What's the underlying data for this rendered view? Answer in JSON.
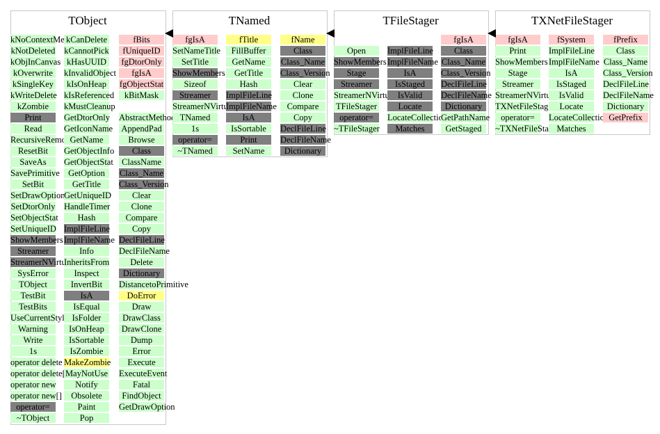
{
  "colors": {
    "constant": "#ffcccc",
    "method": "#ccffcc",
    "inherited": "#7f7f7f",
    "member": "#ffff88"
  },
  "classes": [
    {
      "name": "TObject",
      "columns": [
        [
          {
            "t": "kNoContextMenu",
            "k": "meth"
          },
          {
            "t": "kNotDeleted",
            "k": "meth"
          },
          {
            "t": "kObjInCanvas",
            "k": "meth"
          },
          {
            "t": "kOverwrite",
            "k": "meth"
          },
          {
            "t": "kSingleKey",
            "k": "meth"
          },
          {
            "t": "kWriteDelete",
            "k": "meth"
          },
          {
            "t": "kZombie",
            "k": "meth"
          },
          {
            "t": "Print",
            "k": "inh"
          },
          {
            "t": "Read",
            "k": "meth"
          },
          {
            "t": "RecursiveRemove",
            "k": "meth"
          },
          {
            "t": "ResetBit",
            "k": "meth"
          },
          {
            "t": "SaveAs",
            "k": "meth"
          },
          {
            "t": "SavePrimitive",
            "k": "meth"
          },
          {
            "t": "SetBit",
            "k": "meth"
          },
          {
            "t": "SetDrawOption",
            "k": "meth"
          },
          {
            "t": "SetDtorOnly",
            "k": "meth"
          },
          {
            "t": "SetObjectStat",
            "k": "meth"
          },
          {
            "t": "SetUniqueID",
            "k": "meth"
          },
          {
            "t": "ShowMembers",
            "k": "inh"
          },
          {
            "t": "Streamer",
            "k": "inh"
          },
          {
            "t": "StreamerNVirtual",
            "k": "inh"
          },
          {
            "t": "SysError",
            "k": "meth"
          },
          {
            "t": "TObject",
            "k": "meth"
          },
          {
            "t": "TestBit",
            "k": "meth"
          },
          {
            "t": "TestBits",
            "k": "meth"
          },
          {
            "t": "UseCurrentStyle",
            "k": "meth"
          },
          {
            "t": "Warning",
            "k": "meth"
          },
          {
            "t": "Write",
            "k": "meth"
          },
          {
            "t": "1s",
            "k": "meth"
          },
          {
            "t": "operator delete",
            "k": "meth"
          },
          {
            "t": "operator delete[]",
            "k": "meth"
          },
          {
            "t": "operator new",
            "k": "meth"
          },
          {
            "t": "operator new[]",
            "k": "meth"
          },
          {
            "t": "operator=",
            "k": "inh"
          },
          {
            "t": "~TObject",
            "k": "meth"
          }
        ],
        [
          {
            "t": "kCanDelete",
            "k": "meth"
          },
          {
            "t": "kCannotPick",
            "k": "meth"
          },
          {
            "t": "kHasUUID",
            "k": "meth"
          },
          {
            "t": "kInvalidObject",
            "k": "meth"
          },
          {
            "t": "kIsOnHeap",
            "k": "meth"
          },
          {
            "t": "kIsReferenced",
            "k": "meth"
          },
          {
            "t": "kMustCleanup",
            "k": "meth"
          },
          {
            "t": "GetDtorOnly",
            "k": "meth"
          },
          {
            "t": "GetIconName",
            "k": "meth"
          },
          {
            "t": "GetName",
            "k": "meth"
          },
          {
            "t": "GetObjectInfo",
            "k": "meth"
          },
          {
            "t": "GetObjectStat",
            "k": "meth"
          },
          {
            "t": "GetOption",
            "k": "meth"
          },
          {
            "t": "GetTitle",
            "k": "meth"
          },
          {
            "t": "GetUniqueID",
            "k": "meth"
          },
          {
            "t": "HandleTimer",
            "k": "meth"
          },
          {
            "t": "Hash",
            "k": "meth"
          },
          {
            "t": "ImplFileLine",
            "k": "inh"
          },
          {
            "t": "ImplFileName",
            "k": "inh"
          },
          {
            "t": "Info",
            "k": "meth"
          },
          {
            "t": "InheritsFrom",
            "k": "meth"
          },
          {
            "t": "Inspect",
            "k": "meth"
          },
          {
            "t": "InvertBit",
            "k": "meth"
          },
          {
            "t": "IsA",
            "k": "inh"
          },
          {
            "t": "IsEqual",
            "k": "meth"
          },
          {
            "t": "IsFolder",
            "k": "meth"
          },
          {
            "t": "IsOnHeap",
            "k": "meth"
          },
          {
            "t": "IsSortable",
            "k": "meth"
          },
          {
            "t": "IsZombie",
            "k": "meth"
          },
          {
            "t": "MakeZombie",
            "k": "data"
          },
          {
            "t": "MayNotUse",
            "k": "meth"
          },
          {
            "t": "Notify",
            "k": "meth"
          },
          {
            "t": "Obsolete",
            "k": "meth"
          },
          {
            "t": "Paint",
            "k": "meth"
          },
          {
            "t": "Pop",
            "k": "meth"
          }
        ],
        [
          {
            "t": "fBits",
            "k": "const"
          },
          {
            "t": "fUniqueID",
            "k": "const"
          },
          {
            "t": "fgDtorOnly",
            "k": "const"
          },
          {
            "t": "fgIsA",
            "k": "const"
          },
          {
            "t": "fgObjectStat",
            "k": "const"
          },
          {
            "t": "kBitMask",
            "k": "meth"
          },
          {
            "t": "",
            "k": "none"
          },
          {
            "t": "AbstractMethod",
            "k": "meth"
          },
          {
            "t": "AppendPad",
            "k": "meth"
          },
          {
            "t": "Browse",
            "k": "meth"
          },
          {
            "t": "Class",
            "k": "inh"
          },
          {
            "t": "ClassName",
            "k": "meth"
          },
          {
            "t": "Class_Name",
            "k": "inh"
          },
          {
            "t": "Class_Version",
            "k": "inh"
          },
          {
            "t": "Clear",
            "k": "meth"
          },
          {
            "t": "Clone",
            "k": "meth"
          },
          {
            "t": "Compare",
            "k": "meth"
          },
          {
            "t": "Copy",
            "k": "meth"
          },
          {
            "t": "DeclFileLine",
            "k": "inh"
          },
          {
            "t": "DeclFileName",
            "k": "meth"
          },
          {
            "t": "Delete",
            "k": "meth"
          },
          {
            "t": "Dictionary",
            "k": "inh"
          },
          {
            "t": "DistancetoPrimitive",
            "k": "meth"
          },
          {
            "t": "DoError",
            "k": "data"
          },
          {
            "t": "Draw",
            "k": "meth"
          },
          {
            "t": "DrawClass",
            "k": "meth"
          },
          {
            "t": "DrawClone",
            "k": "meth"
          },
          {
            "t": "Dump",
            "k": "meth"
          },
          {
            "t": "Error",
            "k": "meth"
          },
          {
            "t": "Execute",
            "k": "meth"
          },
          {
            "t": "ExecuteEvent",
            "k": "meth"
          },
          {
            "t": "Fatal",
            "k": "meth"
          },
          {
            "t": "FindObject",
            "k": "meth"
          },
          {
            "t": "GetDrawOption",
            "k": "meth"
          }
        ]
      ]
    },
    {
      "name": "TNamed",
      "columns": [
        [
          {
            "t": "fgIsA",
            "k": "const"
          },
          {
            "t": "SetNameTitle",
            "k": "meth"
          },
          {
            "t": "SetTitle",
            "k": "meth"
          },
          {
            "t": "ShowMembers",
            "k": "inh"
          },
          {
            "t": "Sizeof",
            "k": "meth"
          },
          {
            "t": "Streamer",
            "k": "inh"
          },
          {
            "t": "StreamerNVirtual",
            "k": "meth"
          },
          {
            "t": "TNamed",
            "k": "meth"
          },
          {
            "t": "1s",
            "k": "meth"
          },
          {
            "t": "operator=",
            "k": "inh"
          },
          {
            "t": "~TNamed",
            "k": "meth"
          }
        ],
        [
          {
            "t": "fTitle",
            "k": "data"
          },
          {
            "t": "FillBuffer",
            "k": "meth"
          },
          {
            "t": "GetName",
            "k": "meth"
          },
          {
            "t": "GetTitle",
            "k": "meth"
          },
          {
            "t": "Hash",
            "k": "meth"
          },
          {
            "t": "ImplFileLine",
            "k": "inh"
          },
          {
            "t": "ImplFileName",
            "k": "inh"
          },
          {
            "t": "IsA",
            "k": "inh"
          },
          {
            "t": "IsSortable",
            "k": "meth"
          },
          {
            "t": "Print",
            "k": "inh"
          },
          {
            "t": "SetName",
            "k": "meth"
          }
        ],
        [
          {
            "t": "fName",
            "k": "data"
          },
          {
            "t": "Class",
            "k": "inh"
          },
          {
            "t": "Class_Name",
            "k": "inh"
          },
          {
            "t": "Class_Version",
            "k": "inh"
          },
          {
            "t": "Clear",
            "k": "meth"
          },
          {
            "t": "Clone",
            "k": "meth"
          },
          {
            "t": "Compare",
            "k": "meth"
          },
          {
            "t": "Copy",
            "k": "meth"
          },
          {
            "t": "DeclFileLine",
            "k": "inh"
          },
          {
            "t": "DeclFileName",
            "k": "inh"
          },
          {
            "t": "Dictionary",
            "k": "inh"
          }
        ]
      ]
    },
    {
      "name": "TFileStager",
      "columns": [
        [
          {
            "t": "",
            "k": "none"
          },
          {
            "t": "Open",
            "k": "meth"
          },
          {
            "t": "ShowMembers",
            "k": "inh"
          },
          {
            "t": "Stage",
            "k": "inh"
          },
          {
            "t": "Streamer",
            "k": "inh"
          },
          {
            "t": "StreamerNVirtual",
            "k": "meth"
          },
          {
            "t": "TFileStager",
            "k": "meth"
          },
          {
            "t": "operator=",
            "k": "inh"
          },
          {
            "t": "~TFileStager",
            "k": "meth"
          }
        ],
        [
          {
            "t": "",
            "k": "none"
          },
          {
            "t": "ImplFileLine",
            "k": "inh"
          },
          {
            "t": "ImplFileName",
            "k": "inh"
          },
          {
            "t": "IsA",
            "k": "inh"
          },
          {
            "t": "IsStaged",
            "k": "inh"
          },
          {
            "t": "IsValid",
            "k": "inh"
          },
          {
            "t": "Locate",
            "k": "inh"
          },
          {
            "t": "LocateCollection",
            "k": "meth"
          },
          {
            "t": "Matches",
            "k": "inh"
          }
        ],
        [
          {
            "t": "fgIsA",
            "k": "const"
          },
          {
            "t": "Class",
            "k": "inh"
          },
          {
            "t": "Class_Name",
            "k": "inh"
          },
          {
            "t": "Class_Version",
            "k": "inh"
          },
          {
            "t": "DeclFileLine",
            "k": "inh"
          },
          {
            "t": "DeclFileName",
            "k": "inh"
          },
          {
            "t": "Dictionary",
            "k": "inh"
          },
          {
            "t": "GetPathName",
            "k": "meth"
          },
          {
            "t": "GetStaged",
            "k": "meth"
          }
        ]
      ]
    },
    {
      "name": "TXNetFileStager",
      "columns": [
        [
          {
            "t": "fgIsA",
            "k": "const"
          },
          {
            "t": "Print",
            "k": "meth"
          },
          {
            "t": "ShowMembers",
            "k": "meth"
          },
          {
            "t": "Stage",
            "k": "meth"
          },
          {
            "t": "Streamer",
            "k": "meth"
          },
          {
            "t": "StreamerNVirtual",
            "k": "meth"
          },
          {
            "t": "TXNetFileStager",
            "k": "meth"
          },
          {
            "t": "operator=",
            "k": "meth"
          },
          {
            "t": "~TXNetFileStager",
            "k": "meth"
          }
        ],
        [
          {
            "t": "fSystem",
            "k": "const"
          },
          {
            "t": "ImplFileLine",
            "k": "meth"
          },
          {
            "t": "ImplFileName",
            "k": "meth"
          },
          {
            "t": "IsA",
            "k": "meth"
          },
          {
            "t": "IsStaged",
            "k": "meth"
          },
          {
            "t": "IsValid",
            "k": "meth"
          },
          {
            "t": "Locate",
            "k": "meth"
          },
          {
            "t": "LocateCollection",
            "k": "meth"
          },
          {
            "t": "Matches",
            "k": "meth"
          }
        ],
        [
          {
            "t": "fPrefix",
            "k": "const"
          },
          {
            "t": "Class",
            "k": "meth"
          },
          {
            "t": "Class_Name",
            "k": "meth"
          },
          {
            "t": "Class_Version",
            "k": "meth"
          },
          {
            "t": "DeclFileLine",
            "k": "meth"
          },
          {
            "t": "DeclFileName",
            "k": "meth"
          },
          {
            "t": "Dictionary",
            "k": "meth"
          },
          {
            "t": "GetPrefix",
            "k": "const"
          }
        ]
      ]
    }
  ]
}
